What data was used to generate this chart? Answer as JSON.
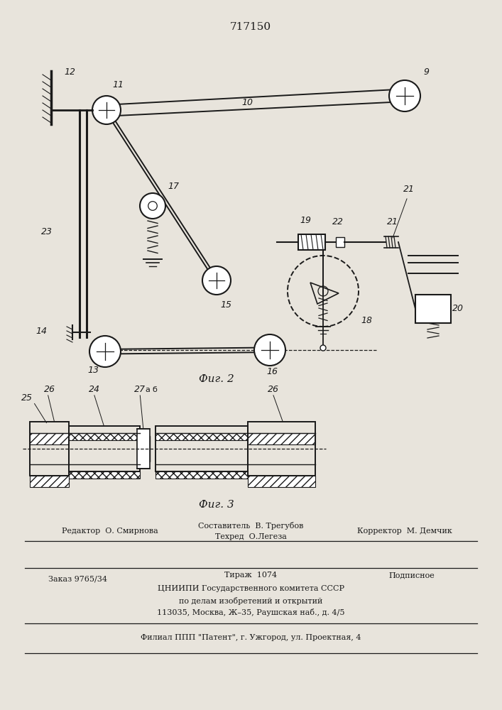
{
  "title": "717150",
  "bg_color": "#e8e4dc",
  "fig2_label": "Фиг. 2",
  "fig3_label": "Фиг. 3",
  "footer_line1_left": "Редактор  О. Смирнова",
  "footer_line1_center": "Составитель  В. Трегубов",
  "footer_line1_center2": "Техред  О.Легеза",
  "footer_line1_right": "Корректор  М. Демчик",
  "footer_line2_left": "Заказ 9765/34",
  "footer_line2_center": "Тираж  1074",
  "footer_line2_right": "Подписное",
  "footer_line3": "ЦНИИПИ Государственного комитета СССР",
  "footer_line4": "по делам изобретений и открытий",
  "footer_line5": "113035, Москва, Ж–35, Раушская наб., д. 4/5",
  "footer_line6": "Филиал ППП \"Патент\", г. Ужгород, ул. Проектная, 4",
  "line_color": "#1a1a1a"
}
